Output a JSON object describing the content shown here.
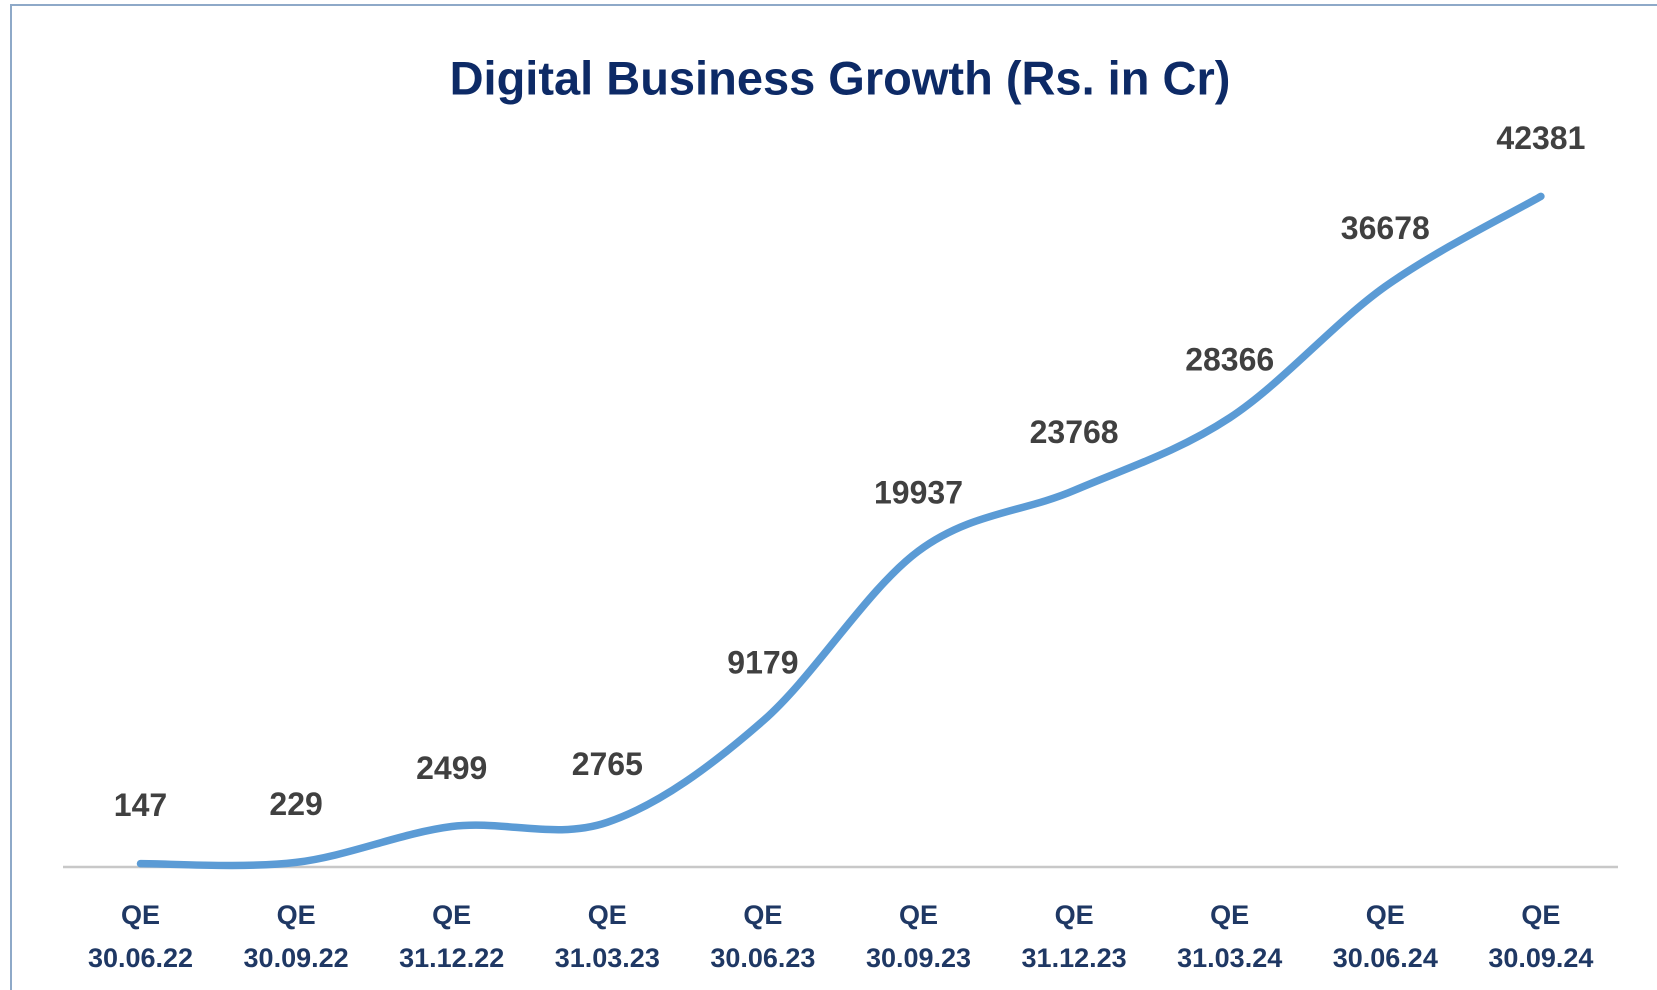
{
  "chart_data": {
    "type": "line",
    "title": "Digital Business Growth (Rs. in Cr)",
    "categories": [
      "QE 30.06.22",
      "QE 30.09.22",
      "QE 31.12.22",
      "QE 31.03.23",
      "QE 30.06.23",
      "QE 30.09.23",
      "QE 31.12.23",
      "QE 31.03.24",
      "QE 30.06.24",
      "QE 30.09.24"
    ],
    "values": [
      147,
      229,
      2499,
      2765,
      9179,
      19937,
      23768,
      28366,
      36678,
      42381
    ],
    "color": "#5b9bd5",
    "ylim": [
      0,
      45000
    ],
    "smooth": true,
    "grid": false
  }
}
